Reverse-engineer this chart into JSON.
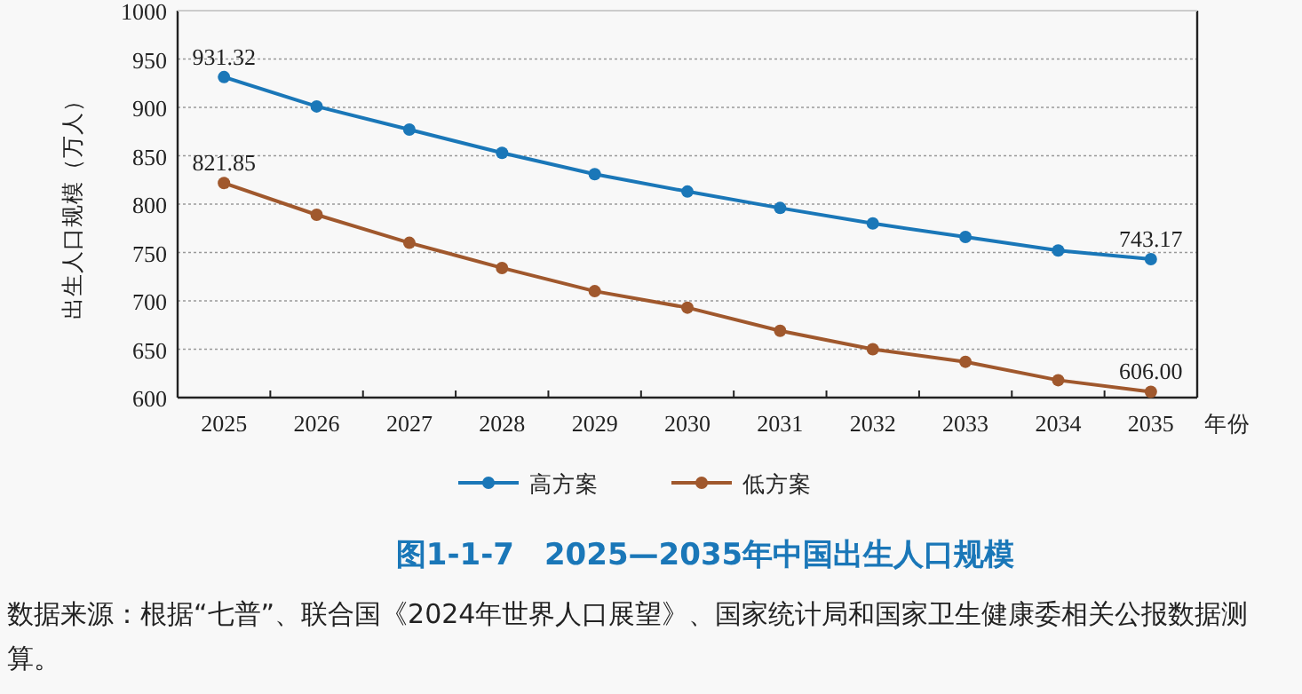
{
  "chart_data": {
    "type": "line",
    "title": "图1-1-7　2025—2035年中国出生人口规模",
    "xlabel": "年份",
    "ylabel": "出生人口规模（万人）",
    "categories": [
      "2025",
      "2026",
      "2027",
      "2028",
      "2029",
      "2030",
      "2031",
      "2032",
      "2033",
      "2034",
      "2035"
    ],
    "series": [
      {
        "name": "高方案",
        "color": "#1a77b8",
        "values": [
          931.32,
          901,
          877,
          853,
          831,
          813,
          796,
          780,
          766,
          752,
          743.17
        ],
        "value_labels": [
          "931.32",
          null,
          null,
          null,
          null,
          null,
          null,
          null,
          null,
          null,
          "743.17"
        ]
      },
      {
        "name": "低方案",
        "color": "#a0582d",
        "values": [
          821.85,
          789,
          760,
          734,
          710,
          693,
          669,
          650,
          637,
          618,
          606.0
        ],
        "value_labels": [
          "821.85",
          null,
          null,
          null,
          null,
          null,
          null,
          null,
          null,
          null,
          "606.00"
        ]
      }
    ],
    "ylim": [
      600,
      1000
    ],
    "yticks": [
      600,
      650,
      700,
      750,
      800,
      850,
      900,
      950,
      1000
    ],
    "grid": "y",
    "legend": "bottom",
    "marker": "circle",
    "line_style": "solid",
    "annotations": [
      "数据来源：根据“七普”、联合国《2024年世界人口展望》、国家统计局和国家卫生健康委相关公报数据测算。"
    ]
  }
}
